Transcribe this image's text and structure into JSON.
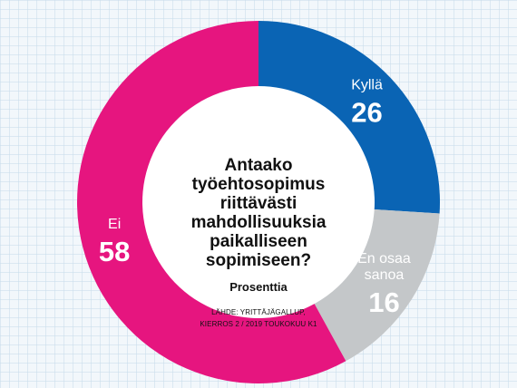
{
  "chart_data": {
    "type": "pie",
    "donut": true,
    "title_lines": [
      "Antaako työehtosopimus",
      "riittävästi mahdollisuuksia",
      "paikalliseen sopimiseen?"
    ],
    "unit": "Prosenttia",
    "source_lines": [
      "LÄHDE: YRITTÄJÄGALLUP,",
      "KIERROS 2 / 2019 TOUKOKUU K1"
    ],
    "slices": [
      {
        "label_lines": [
          "Kyllä"
        ],
        "value": 26,
        "color": "#0a64b4",
        "text_color": "#ffffff"
      },
      {
        "label_lines": [
          "En osaa",
          "sanoa"
        ],
        "value": 16,
        "color": "#c4c7c9",
        "text_color": "#111111"
      },
      {
        "label_lines": [
          "Ei"
        ],
        "value": 58,
        "color": "#e6157f",
        "text_color": "#ffffff"
      }
    ],
    "start_angle_deg": 0,
    "direction": "clockwise",
    "legend": "none"
  }
}
